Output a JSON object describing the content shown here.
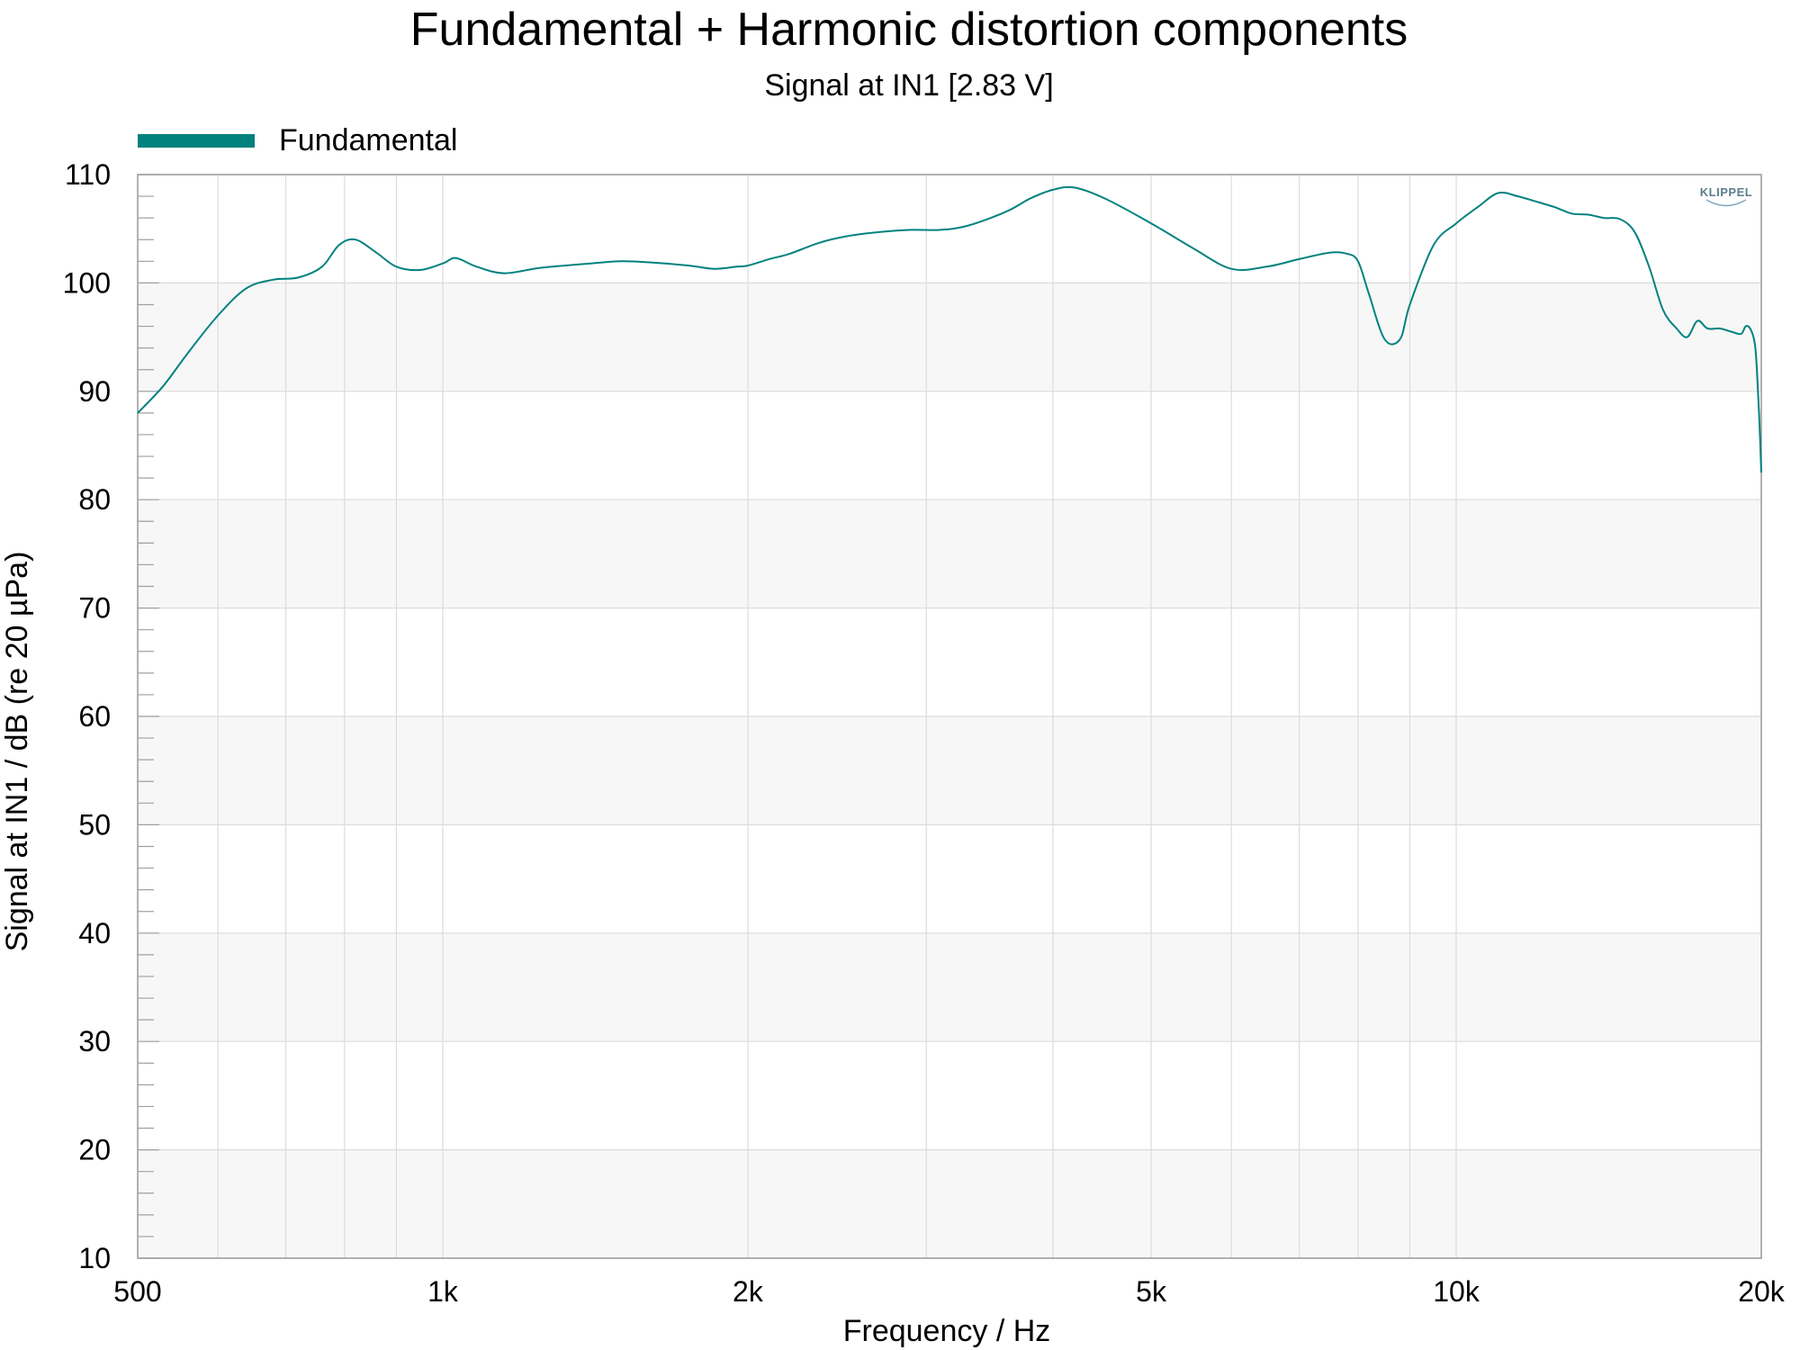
{
  "chart_data": {
    "type": "line",
    "title": "Fundamental + Harmonic distortion components",
    "subtitle": "Signal at IN1 [2.83 V]",
    "xlabel": "Frequency / Hz",
    "ylabel": "Signal at IN1 / dB (re 20 µPa)",
    "xscale": "log",
    "xlim": [
      500,
      20000
    ],
    "ylim": [
      10,
      110
    ],
    "x_ticks": [
      500,
      1000,
      2000,
      5000,
      10000,
      20000
    ],
    "x_tick_labels": [
      "500",
      "1k",
      "2k",
      "5k",
      "10k",
      "20k"
    ],
    "y_ticks": [
      10,
      20,
      30,
      40,
      50,
      60,
      70,
      80,
      90,
      100,
      110
    ],
    "y_tick_labels": [
      "10",
      "20",
      "30",
      "40",
      "50",
      "60",
      "70",
      "80",
      "90",
      "100",
      "110"
    ],
    "grid": true,
    "legend_position": "top-left",
    "logo": "KLIPPEL",
    "series": [
      {
        "name": "Fundamental",
        "color": "#00827f",
        "x": [
          500,
          530,
          560,
          600,
          640,
          680,
          720,
          760,
          790,
          820,
          860,
          900,
          950,
          1000,
          1030,
          1080,
          1150,
          1250,
          1400,
          1500,
          1600,
          1750,
          1850,
          1950,
          2000,
          2100,
          2200,
          2350,
          2500,
          2700,
          2900,
          3100,
          3300,
          3600,
          3800,
          4000,
          4200,
          4500,
          5000,
          5500,
          6000,
          6500,
          7000,
          7500,
          7800,
          8000,
          8200,
          8500,
          8800,
          9000,
          9500,
          10000,
          10500,
          11000,
          11500,
          12000,
          12500,
          13000,
          13500,
          14000,
          14500,
          15000,
          15500,
          16000,
          16500,
          16900,
          17300,
          17700,
          18200,
          18700,
          19100,
          19300,
          19500,
          19700,
          19800,
          19900,
          20000
        ],
        "y": [
          88.0,
          90.5,
          93.5,
          97.0,
          99.5,
          100.3,
          100.5,
          101.5,
          103.5,
          104.0,
          102.8,
          101.5,
          101.2,
          101.8,
          102.3,
          101.5,
          100.9,
          101.4,
          101.8,
          102.0,
          101.9,
          101.6,
          101.3,
          101.5,
          101.6,
          102.2,
          102.7,
          103.7,
          104.3,
          104.7,
          104.9,
          104.9,
          105.3,
          106.6,
          107.8,
          108.6,
          108.8,
          107.8,
          105.5,
          103.2,
          101.3,
          101.5,
          102.2,
          102.8,
          102.7,
          102.0,
          99.0,
          94.8,
          94.8,
          98.0,
          103.5,
          105.5,
          107.0,
          108.3,
          108.0,
          107.5,
          107.0,
          106.4,
          106.3,
          106.0,
          105.9,
          104.7,
          101.5,
          97.5,
          95.8,
          95.0,
          96.5,
          95.8,
          95.8,
          95.5,
          95.3,
          96.0,
          95.8,
          94.5,
          92.0,
          88.0,
          82.5
        ]
      }
    ]
  }
}
